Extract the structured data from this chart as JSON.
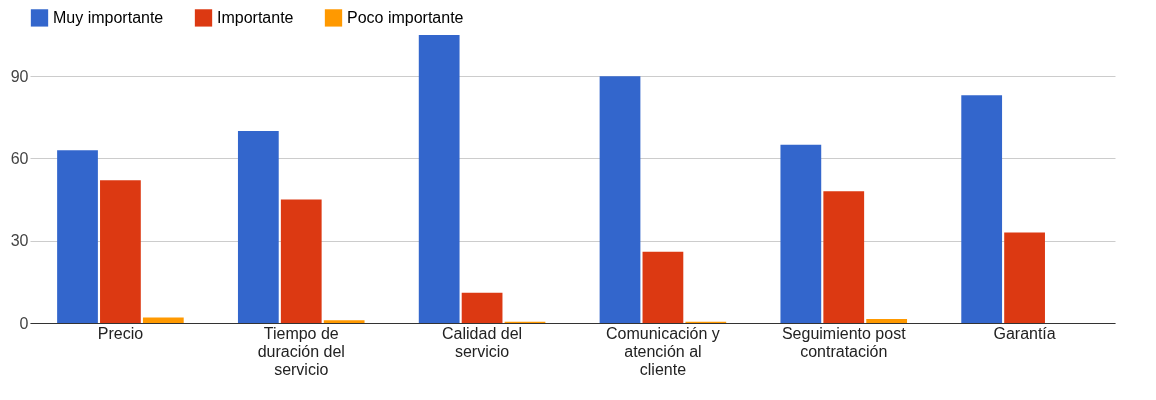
{
  "chart_data": {
    "type": "bar",
    "categories": [
      "Precio",
      "Tiempo de duración del servicio",
      "Calidad del servicio",
      "Comunicación y atención al cliente",
      "Seguimiento post contratación",
      "Garantía"
    ],
    "series": [
      {
        "name": "Muy importante",
        "color": "#3366cc",
        "values": [
          63,
          70,
          105,
          90,
          65,
          83
        ]
      },
      {
        "name": "Importante",
        "color": "#dc3912",
        "values": [
          52,
          45,
          11,
          26,
          48,
          33
        ]
      },
      {
        "name": "Poco importante",
        "color": "#ff9900",
        "values": [
          2,
          1,
          0.5,
          0.5,
          1.5,
          0
        ]
      }
    ],
    "ylim": [
      0,
      105
    ],
    "yticks": [
      0,
      30,
      60,
      90
    ],
    "grid": "y",
    "legend": "top"
  }
}
